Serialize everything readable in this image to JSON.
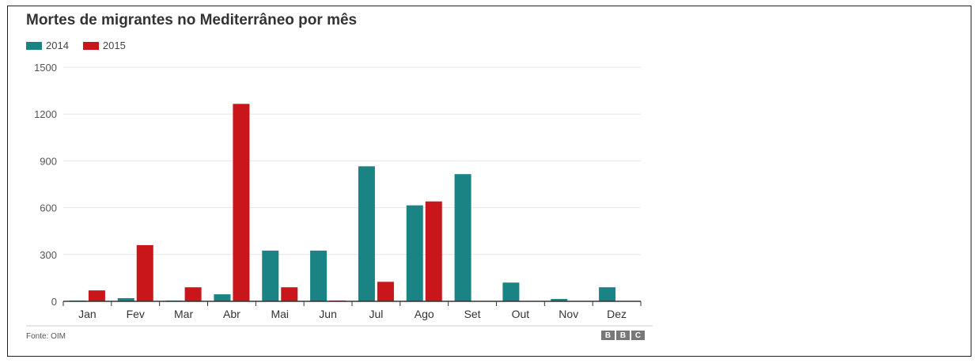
{
  "chart_data": {
    "type": "bar",
    "title": "Mortes de migrantes no Mediterrâneo por mês",
    "categories": [
      "Jan",
      "Fev",
      "Mar",
      "Abr",
      "Mai",
      "Jun",
      "Jul",
      "Ago",
      "Set",
      "Out",
      "Nov",
      "Dez"
    ],
    "series": [
      {
        "name": "2014",
        "color": "#1a8383",
        "values": [
          5,
          20,
          5,
          45,
          325,
          325,
          865,
          615,
          815,
          120,
          15,
          90
        ]
      },
      {
        "name": "2015",
        "color": "#c8161b",
        "values": [
          70,
          360,
          90,
          1265,
          90,
          5,
          125,
          640,
          null,
          null,
          null,
          null
        ]
      }
    ],
    "yticks": [
      0,
      300,
      600,
      900,
      1200,
      1500
    ],
    "ylim": [
      0,
      1500
    ],
    "grid": true,
    "legend": "top-left"
  },
  "footer": {
    "source": "Fonte: OIM",
    "logo_letters": [
      "B",
      "B",
      "C"
    ]
  }
}
